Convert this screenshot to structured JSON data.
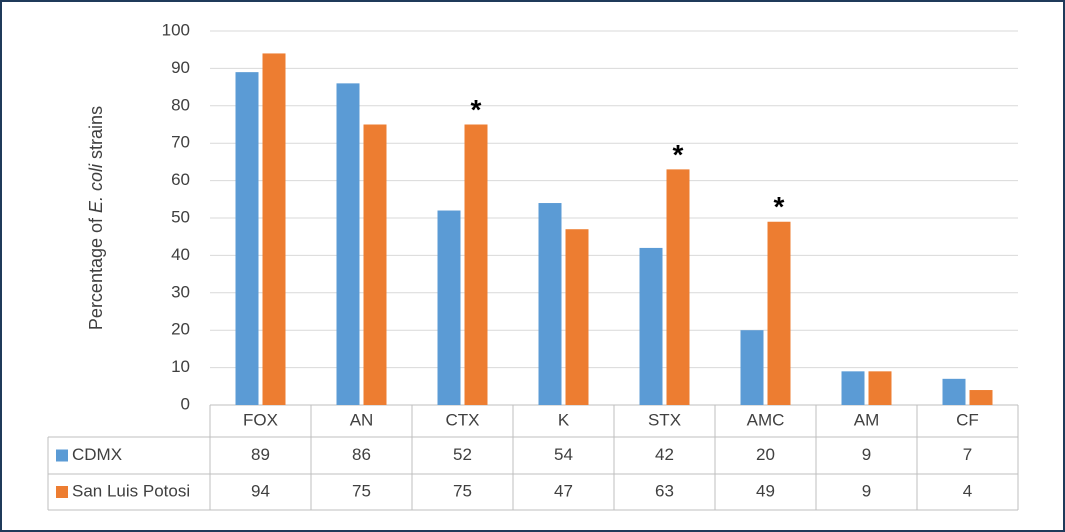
{
  "chart_data": {
    "type": "bar",
    "y_label": {
      "prefix": "Percentage of ",
      "italic": "E. coli",
      "suffix": " strains"
    },
    "categories": [
      "FOX",
      "AN",
      "CTX",
      "K",
      "STX",
      "AMC",
      "AM",
      "CF"
    ],
    "series": [
      {
        "name": "CDMX",
        "color": "#5b9bd5",
        "values": [
          89,
          86,
          52,
          54,
          42,
          20,
          9,
          7
        ]
      },
      {
        "name": "San Luis Potosi",
        "color": "#ed7d31",
        "values": [
          94,
          75,
          75,
          47,
          63,
          49,
          9,
          4
        ]
      }
    ],
    "significance": [
      null,
      null,
      "*",
      null,
      "*",
      "*",
      null,
      null
    ],
    "ylim": [
      0,
      100
    ],
    "yticks": [
      0,
      10,
      20,
      30,
      40,
      50,
      60,
      70,
      80,
      90,
      100
    ],
    "grid": true
  }
}
